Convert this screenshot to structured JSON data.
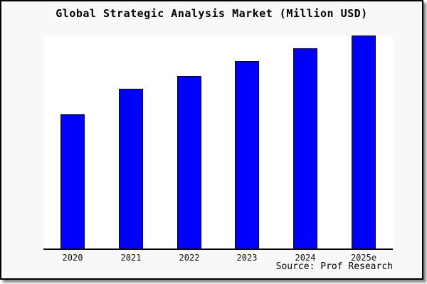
{
  "figure": {
    "title": "Global Strategic Analysis Market (Million USD)",
    "source": "Source: Prof Research"
  },
  "chart_data": {
    "type": "bar",
    "title": "Global Strategic Analysis Market (Million USD)",
    "categories": [
      "2020",
      "2021",
      "2022",
      "2023",
      "2024",
      "2025e"
    ],
    "values": [
      63,
      75,
      81,
      88,
      94,
      100
    ],
    "values_note": "no y-axis or data labels shown; values estimated from bar heights relative to 2025e = 100",
    "xlabel": "",
    "ylabel": "",
    "ylim": [
      0,
      100
    ],
    "grid": false,
    "legend": null,
    "annotations": [
      "Source: Prof Research"
    ],
    "bar_color": "#0000ff",
    "bar_border_color": "#000000"
  },
  "colors": {
    "figure_background": "#f8f8f8",
    "plot_background": "#ffffff",
    "axis": "#000000",
    "text": "#000000"
  }
}
